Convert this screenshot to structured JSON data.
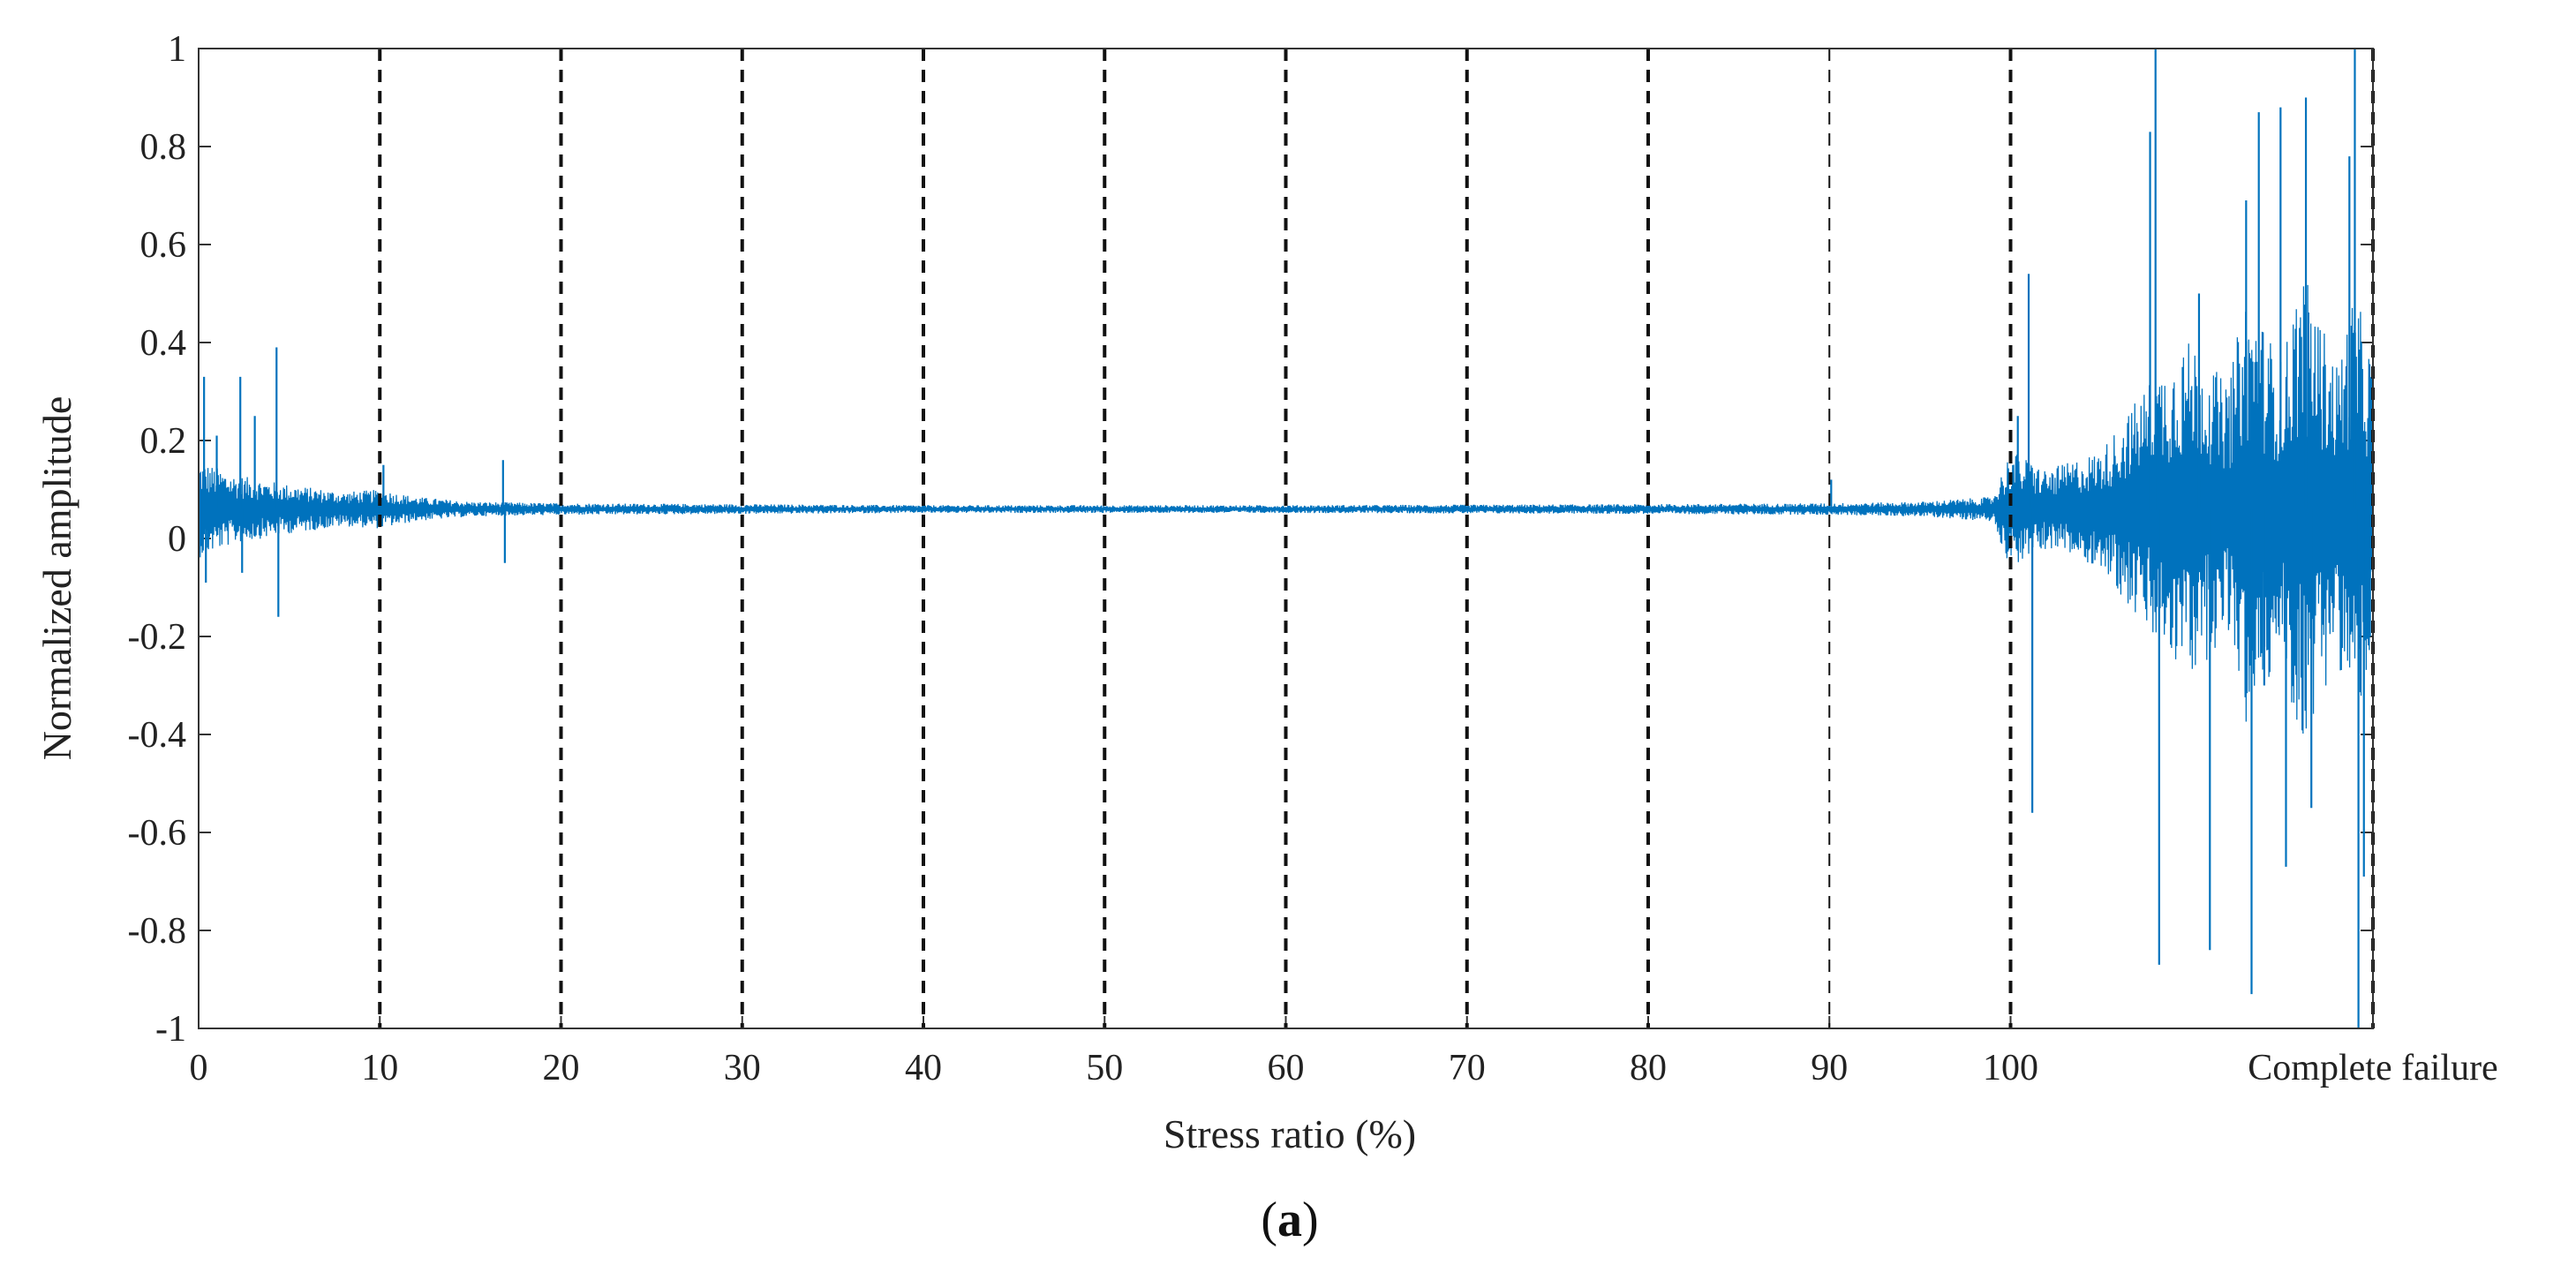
{
  "chart_data": {
    "type": "line",
    "title": "",
    "xlabel": "Stress ratio (%)",
    "ylabel": "Normalized amplitude",
    "ylim": [
      -1,
      1
    ],
    "y_ticks": [
      "-1",
      "-0.8",
      "-0.6",
      "-0.4",
      "-0.2",
      "0",
      "0.2",
      "0.4",
      "0.6",
      "0.8",
      "1"
    ],
    "x_ticks": [
      "0",
      "10",
      "20",
      "30",
      "40",
      "50",
      "60",
      "70",
      "80",
      "90",
      "100",
      "Complete failure"
    ],
    "x_tick_positions": [
      0,
      10,
      20,
      30,
      40,
      50,
      60,
      70,
      80,
      90,
      100,
      120
    ],
    "xlim": [
      0,
      120
    ],
    "grid": false,
    "legend": "none",
    "series_color": "#0072bd",
    "vertical_markers": [
      10,
      20,
      30,
      40,
      50,
      60,
      70,
      80,
      90,
      100,
      120
    ],
    "series": [
      {
        "baseline": 0.06,
        "envelope": [
          [
            0,
            0.1
          ],
          [
            2,
            0.07
          ],
          [
            5,
            0.05
          ],
          [
            8,
            0.035
          ],
          [
            10,
            0.04
          ],
          [
            12,
            0.025
          ],
          [
            15,
            0.015
          ],
          [
            20,
            0.012
          ],
          [
            30,
            0.01
          ],
          [
            40,
            0.008
          ],
          [
            60,
            0.008
          ],
          [
            80,
            0.01
          ],
          [
            90,
            0.012
          ],
          [
            95,
            0.015
          ],
          [
            99,
            0.025
          ],
          [
            100,
            0.12
          ],
          [
            102,
            0.08
          ],
          [
            105,
            0.12
          ],
          [
            108,
            0.28
          ],
          [
            110,
            0.35
          ],
          [
            112,
            0.25
          ],
          [
            113,
            0.45
          ],
          [
            115,
            0.3
          ],
          [
            116,
            0.5
          ],
          [
            118,
            0.3
          ],
          [
            119,
            0.45
          ],
          [
            120,
            0.3
          ]
        ],
        "spikes": [
          [
            0.3,
            0.33
          ],
          [
            0.4,
            -0.09
          ],
          [
            1.0,
            0.21
          ],
          [
            2.3,
            0.33
          ],
          [
            2.4,
            -0.07
          ],
          [
            3.1,
            0.25
          ],
          [
            4.3,
            0.39
          ],
          [
            4.4,
            -0.16
          ],
          [
            10.2,
            0.15
          ],
          [
            16.8,
            0.16
          ],
          [
            16.9,
            -0.05
          ],
          [
            90.1,
            0.12
          ],
          [
            100.4,
            0.25
          ],
          [
            101.0,
            0.54
          ],
          [
            101.2,
            -0.56
          ],
          [
            107.7,
            0.83
          ],
          [
            108.0,
            1.0
          ],
          [
            108.2,
            -0.87
          ],
          [
            109.5,
            0.35
          ],
          [
            110.4,
            0.5
          ],
          [
            111.0,
            -0.84
          ],
          [
            113.0,
            0.69
          ],
          [
            113.3,
            -0.93
          ],
          [
            113.7,
            0.87
          ],
          [
            114.0,
            -0.3
          ],
          [
            114.9,
            0.88
          ],
          [
            115.2,
            -0.67
          ],
          [
            116.3,
            0.9
          ],
          [
            116.6,
            -0.55
          ],
          [
            117.6,
            0.3
          ],
          [
            118.7,
            0.78
          ],
          [
            119.0,
            1.0
          ],
          [
            119.2,
            -1.0
          ],
          [
            119.5,
            -0.69
          ]
        ]
      }
    ]
  },
  "caption": {
    "open": "(",
    "letter": "a",
    "close": ")"
  }
}
